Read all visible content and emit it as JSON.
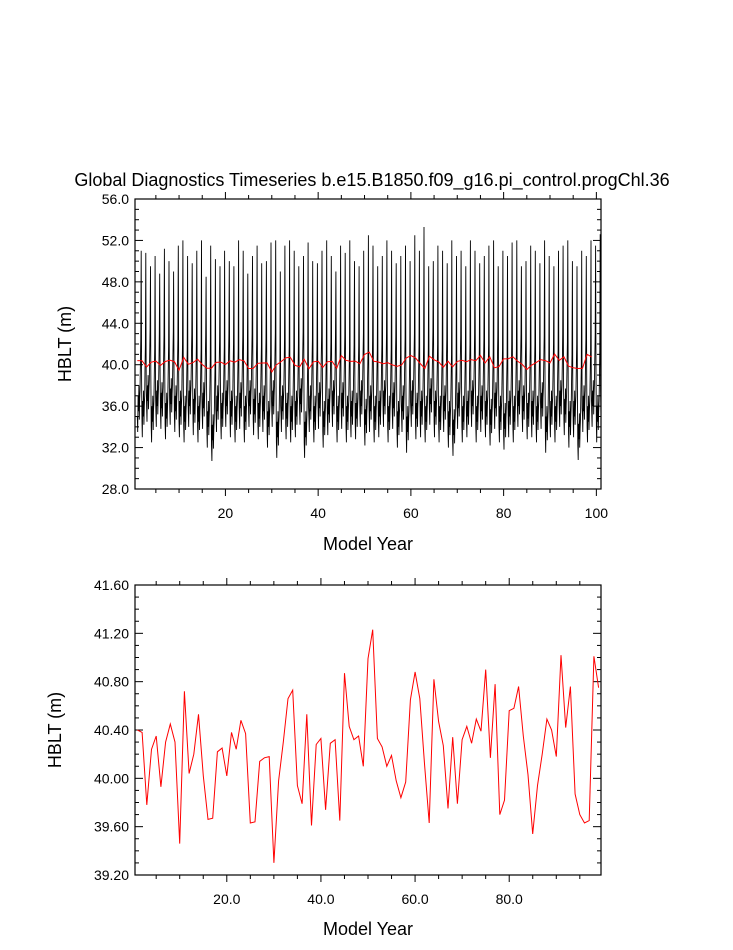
{
  "title": "Global Diagnostics Timeseries b.e15.B1850.f09_g16.pi_control.progChl.36",
  "colors": {
    "monthly": "#000000",
    "annual": "#ff0000",
    "frame": "#000000"
  },
  "chart_data": [
    {
      "type": "line",
      "xlabel": "Model Year",
      "ylabel": "HBLT (m)",
      "xlim": [
        0.5,
        101
      ],
      "ylim": [
        28,
        56
      ],
      "xticks": [
        20,
        40,
        60,
        80,
        100
      ],
      "xtick_labels": [
        "20",
        "40",
        "60",
        "80",
        "100"
      ],
      "yticks": [
        28,
        32,
        36,
        40,
        44,
        48,
        52,
        56
      ],
      "ytick_labels": [
        "28.0",
        "32.0",
        "36.0",
        "40.0",
        "44.0",
        "48.0",
        "52.0",
        "56.0"
      ],
      "series": [
        {
          "kind": "monthly",
          "color": "#000000",
          "note": "monthly HBLT, seasonal cycle roughly between 32-38 (minima) and 48-53 (maxima) each year",
          "annual_peaks": [
            51.0,
            50.8,
            49.5,
            50.5,
            48.8,
            51.2,
            50.0,
            49.0,
            51.5,
            52.0,
            50.5,
            49.8,
            51.0,
            52.0,
            48.5,
            51.5,
            50.2,
            49.5,
            51.0,
            50.0,
            49.5,
            52.0,
            51.0,
            48.8,
            50.5,
            51.5,
            49.8,
            50.0,
            51.8,
            52.0,
            49.0,
            51.5,
            52.0,
            51.0,
            49.5,
            50.5,
            51.8,
            50.0,
            49.8,
            51.0,
            52.0,
            50.5,
            49.0,
            51.5,
            50.8,
            52.0,
            50.0,
            49.5,
            51.0,
            52.5,
            51.5,
            49.5,
            50.5,
            52.0,
            51.0,
            49.8,
            50.5,
            51.5,
            50.0,
            52.5,
            51.0,
            53.3,
            49.5,
            50.0,
            51.5,
            51.0,
            49.8,
            52.0,
            50.5,
            51.0,
            49.5,
            52.0,
            51.0,
            49.8,
            50.5,
            51.5,
            52.0,
            49.5,
            51.0,
            50.5,
            51.8,
            52.0,
            49.5,
            50.0,
            51.5,
            51.0,
            49.8,
            52.0,
            50.5,
            49.5,
            51.0,
            51.5,
            52.0,
            50.0,
            49.5,
            51.0,
            50.5,
            52.0,
            51.5,
            52.6,
            51.5
          ],
          "annual_troughs": [
            33.5,
            33.0,
            34.5,
            32.5,
            34.0,
            33.8,
            32.8,
            34.2,
            33.5,
            33.0,
            32.5,
            34.0,
            33.2,
            32.5,
            33.8,
            32.0,
            30.7,
            33.5,
            32.8,
            34.0,
            33.0,
            32.5,
            33.8,
            32.5,
            34.0,
            33.2,
            32.8,
            33.5,
            32.0,
            34.0,
            31.0,
            33.5,
            32.8,
            32.5,
            33.0,
            34.2,
            31.0,
            33.5,
            32.5,
            33.8,
            32.0,
            33.2,
            34.0,
            32.5,
            33.8,
            32.5,
            33.0,
            32.8,
            34.0,
            32.2,
            33.5,
            32.5,
            33.0,
            34.0,
            32.5,
            33.8,
            32.0,
            33.5,
            31.5,
            34.0,
            32.8,
            33.0,
            32.5,
            34.2,
            33.0,
            32.5,
            33.5,
            32.0,
            31.2,
            33.8,
            32.5,
            33.0,
            34.0,
            32.5,
            33.5,
            33.0,
            32.2,
            33.8,
            32.5,
            31.8,
            33.0,
            32.5,
            34.0,
            33.5,
            32.8,
            33.0,
            32.5,
            33.8,
            31.5,
            33.0,
            32.5,
            34.0,
            33.2,
            32.0,
            33.0,
            30.8,
            33.5,
            32.5,
            34.0,
            32.5,
            33.5
          ]
        },
        {
          "kind": "annual",
          "color": "#ff0000",
          "x_start": 1,
          "values": [
            40.4,
            40.38,
            39.78,
            40.24,
            40.35,
            39.93,
            40.3,
            40.45,
            40.3,
            39.46,
            40.72,
            40.04,
            40.2,
            40.53,
            40.02,
            39.66,
            39.67,
            40.22,
            40.25,
            40.02,
            40.38,
            40.24,
            40.48,
            40.37,
            39.63,
            39.64,
            40.14,
            40.17,
            40.18,
            39.3,
            39.98,
            40.3,
            40.66,
            40.73,
            39.94,
            39.79,
            40.53,
            39.61,
            40.28,
            40.33,
            39.74,
            40.29,
            40.32,
            39.65,
            40.87,
            40.43,
            40.32,
            40.35,
            40.1,
            40.99,
            41.23,
            40.33,
            40.26,
            40.1,
            40.19,
            39.98,
            39.84,
            39.97,
            40.65,
            40.88,
            40.66,
            40.12,
            39.63,
            40.82,
            40.47,
            40.27,
            39.75,
            40.34,
            39.79,
            40.32,
            40.43,
            40.29,
            40.49,
            40.39,
            40.9,
            40.17,
            40.78,
            39.7,
            39.82,
            40.56,
            40.58,
            40.76,
            40.35,
            40.03,
            39.54,
            39.94,
            40.2,
            40.49,
            40.4,
            40.18,
            41.02,
            40.42,
            40.76,
            39.87,
            39.7,
            39.63,
            39.65,
            41.01,
            40.75
          ]
        }
      ]
    },
    {
      "type": "line",
      "xlabel": "Model Year",
      "ylabel": "HBLT (m)",
      "xlim": [
        0.5,
        99.5
      ],
      "ylim": [
        39.2,
        41.6
      ],
      "xticks": [
        20,
        40,
        60,
        80
      ],
      "xtick_labels": [
        "20.0",
        "40.0",
        "60.0",
        "80.0"
      ],
      "yticks": [
        39.2,
        39.6,
        40.0,
        40.4,
        40.8,
        41.2,
        41.6
      ],
      "ytick_labels": [
        "39.20",
        "39.60",
        "40.00",
        "40.40",
        "40.80",
        "41.20",
        "41.60"
      ],
      "series": [
        {
          "kind": "annual",
          "color": "#ff0000",
          "x_start": 1,
          "values": [
            40.4,
            40.38,
            39.78,
            40.24,
            40.35,
            39.93,
            40.3,
            40.45,
            40.3,
            39.46,
            40.72,
            40.04,
            40.2,
            40.53,
            40.02,
            39.66,
            39.67,
            40.22,
            40.25,
            40.02,
            40.38,
            40.24,
            40.48,
            40.37,
            39.63,
            39.64,
            40.14,
            40.17,
            40.18,
            39.3,
            39.98,
            40.3,
            40.66,
            40.73,
            39.94,
            39.79,
            40.53,
            39.61,
            40.28,
            40.33,
            39.74,
            40.29,
            40.32,
            39.65,
            40.87,
            40.43,
            40.32,
            40.35,
            40.1,
            40.99,
            41.23,
            40.33,
            40.26,
            40.1,
            40.19,
            39.98,
            39.84,
            39.97,
            40.65,
            40.88,
            40.66,
            40.12,
            39.63,
            40.82,
            40.47,
            40.27,
            39.75,
            40.34,
            39.79,
            40.32,
            40.43,
            40.29,
            40.49,
            40.39,
            40.9,
            40.17,
            40.78,
            39.7,
            39.82,
            40.56,
            40.58,
            40.76,
            40.35,
            40.03,
            39.54,
            39.94,
            40.2,
            40.49,
            40.4,
            40.18,
            41.02,
            40.42,
            40.76,
            39.87,
            39.7,
            39.63,
            39.65,
            41.01,
            40.75
          ]
        }
      ]
    }
  ]
}
